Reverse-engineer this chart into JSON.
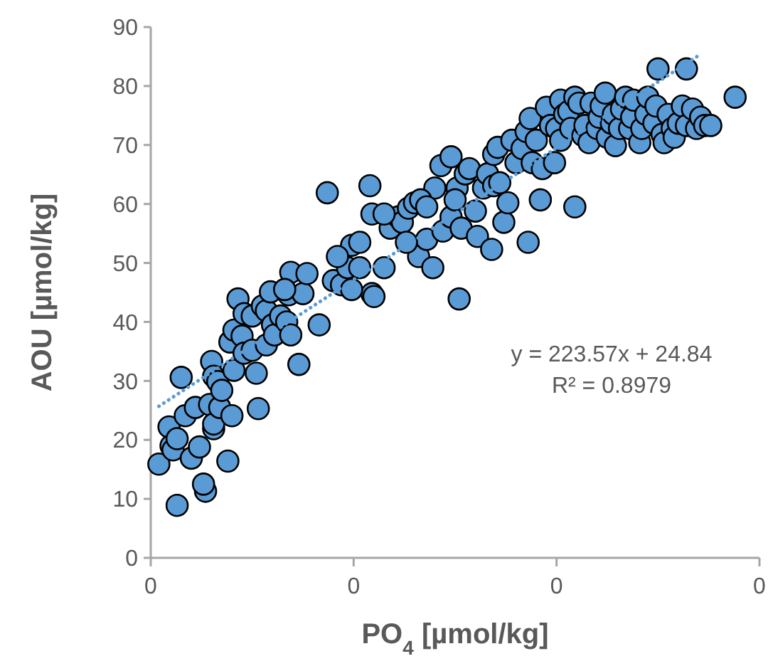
{
  "chart_data": {
    "type": "scatter",
    "xlabel": "PO$_{4}$ [µmol/kg]",
    "ylabel": "AOU [µmol/kg]",
    "xlim": [
      0,
      0.3
    ],
    "xticks": [
      {
        "value": 0,
        "label": "0"
      },
      {
        "value": 0.1,
        "label": "0"
      },
      {
        "value": 0.2,
        "label": "0"
      },
      {
        "value": 0.3,
        "label": "0"
      }
    ],
    "ylim": [
      0,
      90
    ],
    "yticks": [
      0,
      10,
      20,
      30,
      40,
      50,
      60,
      70,
      80,
      90
    ],
    "grid": false,
    "annotations": [
      "y = 223.57x + 24.84",
      "R² = 0.8979"
    ],
    "series": [
      {
        "type": "scatter",
        "color": "#5b9bd5",
        "marker": "circle",
        "x": [
          0.004,
          0.009,
          0.01,
          0.013,
          0.011,
          0.013,
          0.017,
          0.015,
          0.02,
          0.022,
          0.024,
          0.027,
          0.026,
          0.029,
          0.03,
          0.031,
          0.033,
          0.031,
          0.031,
          0.034,
          0.035,
          0.038,
          0.04,
          0.039,
          0.041,
          0.045,
          0.043,
          0.041,
          0.046,
          0.046,
          0.05,
          0.05,
          0.052,
          0.053,
          0.055,
          0.057,
          0.059,
          0.06,
          0.057,
          0.061,
          0.064,
          0.068,
          0.069,
          0.067,
          0.069,
          0.073,
          0.075,
          0.077,
          0.083,
          0.087,
          0.09,
          0.094,
          0.097,
          0.099,
          0.103,
          0.108,
          0.109,
          0.109,
          0.11,
          0.115,
          0.118,
          0.122,
          0.124,
          0.127,
          0.13,
          0.132,
          0.136,
          0.139,
          0.143,
          0.144,
          0.148,
          0.148,
          0.151,
          0.152,
          0.153,
          0.155,
          0.157,
          0.16,
          0.161,
          0.164,
          0.166,
          0.169,
          0.169,
          0.171,
          0.172,
          0.174,
          0.176,
          0.178,
          0.18,
          0.183,
          0.185,
          0.187,
          0.188,
          0.19,
          0.192,
          0.193,
          0.195,
          0.197,
          0.199,
          0.2,
          0.202,
          0.202,
          0.204,
          0.206,
          0.207,
          0.209,
          0.209,
          0.211,
          0.213,
          0.214,
          0.216,
          0.217,
          0.22,
          0.221,
          0.222,
          0.224,
          0.225,
          0.227,
          0.228,
          0.229,
          0.231,
          0.232,
          0.234,
          0.236,
          0.237,
          0.238,
          0.241,
          0.242,
          0.244,
          0.245,
          0.248,
          0.249,
          0.25,
          0.252,
          0.253,
          0.255,
          0.257,
          0.258,
          0.26,
          0.262,
          0.264,
          0.264,
          0.267,
          0.269,
          0.271,
          0.273,
          0.276,
          0.288,
          0.186,
          0.168,
          0.15,
          0.14,
          0.133,
          0.136,
          0.126,
          0.115,
          0.103,
          0.092,
          0.099,
          0.066
        ],
        "values": [
          15.9,
          22.2,
          19.0,
          8.9,
          18.3,
          20.2,
          24.1,
          30.6,
          16.9,
          25.5,
          18.8,
          11.3,
          12.5,
          26.0,
          33.3,
          30.8,
          29.9,
          21.9,
          22.7,
          25.5,
          28.4,
          16.4,
          24.1,
          36.6,
          38.6,
          37.6,
          43.9,
          31.8,
          41.4,
          34.7,
          35.2,
          41.0,
          31.3,
          25.3,
          42.7,
          41.9,
          45.1,
          39.5,
          36.1,
          37.8,
          41.0,
          44.6,
          48.4,
          40.0,
          37.8,
          32.8,
          44.8,
          48.2,
          39.5,
          61.9,
          47.0,
          46.3,
          49.2,
          53.0,
          49.2,
          63.1,
          58.3,
          44.8,
          44.3,
          49.2,
          55.9,
          57.8,
          56.9,
          59.3,
          60.2,
          51.1,
          54.0,
          49.2,
          66.5,
          55.4,
          57.8,
          68.0,
          62.7,
          43.9,
          55.9,
          65.1,
          66.0,
          58.8,
          54.5,
          62.7,
          65.1,
          63.1,
          68.4,
          69.6,
          63.6,
          56.9,
          60.2,
          70.8,
          67.0,
          69.4,
          72.3,
          74.5,
          67.0,
          70.8,
          60.7,
          66.0,
          76.4,
          73.3,
          67.0,
          72.8,
          77.6,
          70.8,
          75.2,
          75.7,
          72.8,
          78.1,
          59.5,
          77.1,
          71.6,
          73.3,
          70.4,
          77.1,
          72.8,
          74.7,
          76.6,
          78.8,
          71.3,
          73.7,
          75.2,
          69.9,
          72.8,
          76.1,
          78.1,
          72.8,
          74.7,
          77.6,
          70.4,
          72.8,
          75.2,
          78.1,
          73.7,
          76.6,
          82.9,
          71.8,
          70.4,
          75.2,
          72.8,
          71.3,
          73.7,
          76.6,
          73.3,
          82.9,
          76.1,
          72.8,
          74.7,
          73.3,
          73.3,
          78.1,
          53.5,
          52.3,
          60.7,
          62.7,
          60.7,
          59.5,
          53.5,
          58.3,
          53.5,
          51.1,
          45.5,
          45.5
        ]
      },
      {
        "type": "line",
        "color": "#5b9bd5",
        "line_style": "dotted",
        "marker": "none",
        "x": [
          0.004,
          0.271
        ],
        "values": [
          25.7,
          85.4
        ]
      }
    ]
  }
}
